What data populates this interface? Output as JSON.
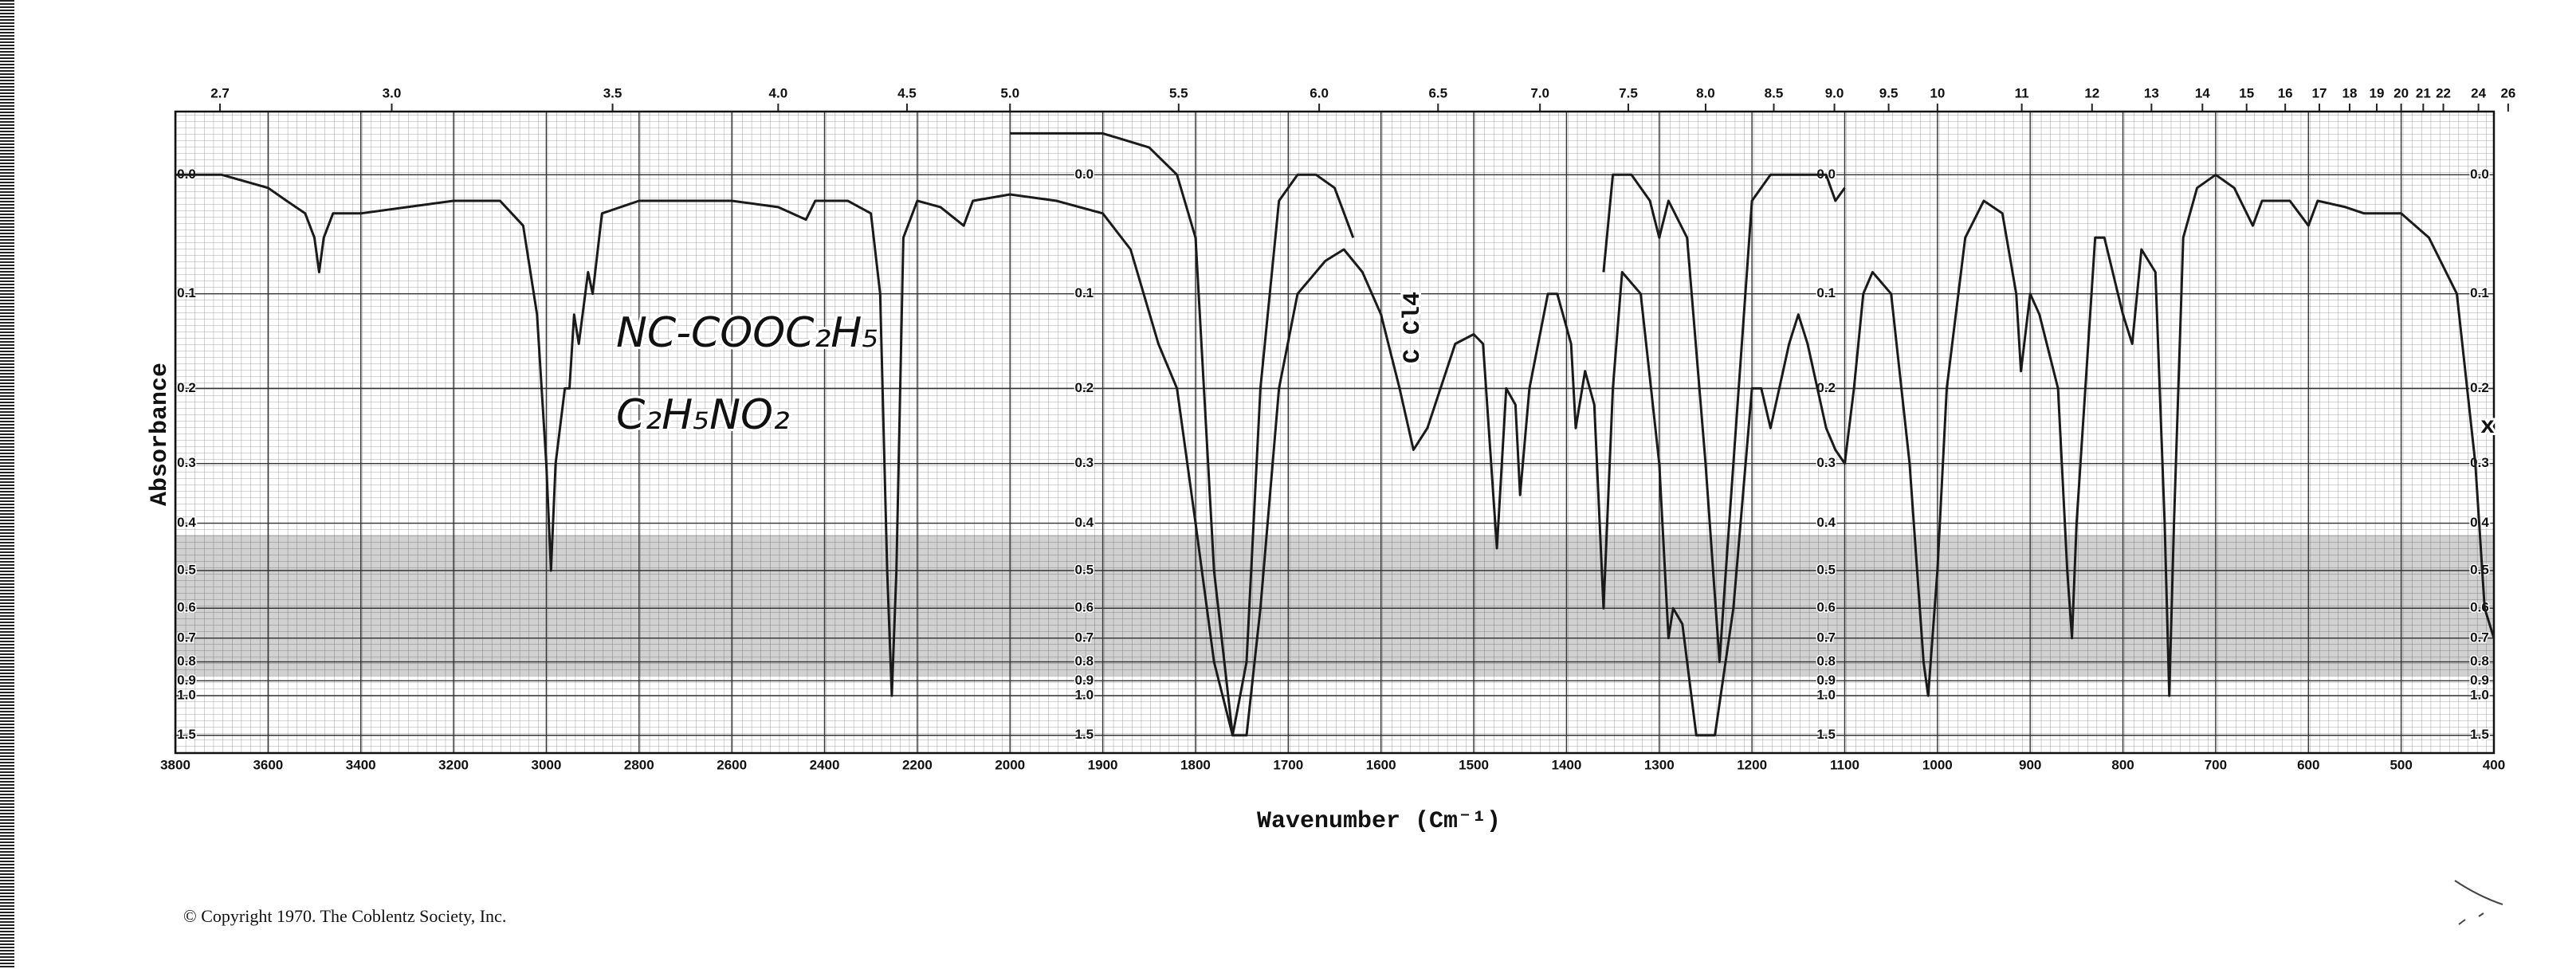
{
  "chart_data": {
    "type": "line",
    "xlabel": "Wavenumber (Cm⁻¹)",
    "ylabel": "Absorbance",
    "xlim": [
      3800,
      400
    ],
    "xticks": [
      3800,
      3600,
      3400,
      3200,
      3000,
      2800,
      2600,
      2400,
      2200,
      2000,
      1900,
      1800,
      1700,
      1600,
      1500,
      1400,
      1300,
      1200,
      1100,
      1000,
      900,
      800,
      700,
      600,
      500,
      400
    ],
    "x2ticks": [
      2.7,
      {
        "value": 3,
        "label": "3.0"
      },
      3.5,
      {
        "value": 4,
        "label": "4.0"
      },
      4.5,
      {
        "value": 5,
        "label": "5.0"
      },
      5.5,
      {
        "value": 6,
        "label": "6.0"
      },
      6.5,
      {
        "value": 7,
        "label": "7.0"
      },
      7.5,
      {
        "value": 8,
        "label": "8.0"
      },
      8.5,
      {
        "value": 9,
        "label": "9.0"
      },
      9.5,
      10,
      11,
      12,
      13,
      14,
      15,
      16,
      17,
      18,
      19,
      20,
      21,
      22,
      24,
      26
    ],
    "yscale": "transmittance",
    "ylim": [
      3,
      -0.045
    ],
    "yticks": [
      {
        "value": 0,
        "label": "0.0"
      },
      0.1,
      0.2,
      0.3,
      0.4,
      0.5,
      0.6,
      0.7,
      0.8,
      0.9,
      {
        "value": 1,
        "label": "1.0"
      },
      1.5
    ],
    "grid": true,
    "annotations": [
      "NC-COOC₂H₅",
      "C₂H₅NO₂",
      "C Cl4",
      "x"
    ],
    "copyright": "© Copyright 1970.  The Coblentz Society, Inc.",
    "series": [
      {
        "color": "#1a1a1a",
        "x": [
          3800,
          3700,
          3600,
          3560,
          3520,
          3500,
          3490,
          3480,
          3460,
          3400,
          3300,
          3200,
          3100,
          3050,
          3020,
          3000,
          2990,
          2980,
          2960,
          2950,
          2940,
          2930,
          2910,
          2900,
          2880,
          2800,
          2700,
          2600,
          2500,
          2440,
          2420,
          2350,
          2300,
          2280,
          2265,
          2255,
          2245,
          2230,
          2200,
          2150,
          2100,
          2080,
          2000,
          1950,
          1900,
          1870,
          1840,
          1820,
          1800,
          1780,
          1760,
          1745,
          1730,
          1710,
          1690,
          1660,
          1640,
          1620,
          1600,
          1580,
          1565,
          1550,
          1520,
          1500,
          1490,
          1475,
          1465,
          1455,
          1450,
          1440,
          1420,
          1410,
          1395,
          1390,
          1380,
          1370,
          1360,
          1350,
          1340,
          1320,
          1300,
          1290,
          1285,
          1275,
          1260,
          1240,
          1220,
          1200,
          1190,
          1180,
          1160,
          1150,
          1140,
          1120,
          1110,
          1100,
          1090,
          1080,
          1070,
          1050,
          1030,
          1015,
          1010,
          1000,
          990,
          970,
          950,
          930,
          915,
          910,
          900,
          890,
          870,
          860,
          855,
          850,
          830,
          820,
          800,
          790,
          780,
          765,
          755,
          750,
          745,
          735,
          720,
          700,
          680,
          660,
          650,
          620,
          600,
          590,
          560,
          540,
          500,
          470,
          440,
          420,
          410,
          400
        ],
        "values": [
          0,
          0,
          0.01,
          0.02,
          0.03,
          0.05,
          0.08,
          0.05,
          0.03,
          0.03,
          0.025,
          0.02,
          0.02,
          0.04,
          0.12,
          0.3,
          0.5,
          0.3,
          0.2,
          0.2,
          0.12,
          0.15,
          0.08,
          0.1,
          0.03,
          0.02,
          0.02,
          0.02,
          0.025,
          0.035,
          0.02,
          0.02,
          0.03,
          0.1,
          0.5,
          1.0,
          0.5,
          0.05,
          0.02,
          0.025,
          0.04,
          0.02,
          0.015,
          0.02,
          0.03,
          0.06,
          0.15,
          0.2,
          0.4,
          0.8,
          1.5,
          1.5,
          0.6,
          0.2,
          0.1,
          0.07,
          0.06,
          0.08,
          0.12,
          0.2,
          0.28,
          0.25,
          0.15,
          0.14,
          0.15,
          0.45,
          0.2,
          0.22,
          0.35,
          0.2,
          0.1,
          0.1,
          0.15,
          0.25,
          0.18,
          0.22,
          0.6,
          0.2,
          0.08,
          0.1,
          0.3,
          0.7,
          0.6,
          0.65,
          1.5,
          1.5,
          0.6,
          0.2,
          0.2,
          0.25,
          0.15,
          0.12,
          0.15,
          0.25,
          0.28,
          0.3,
          0.2,
          0.1,
          0.08,
          0.1,
          0.3,
          0.8,
          1.0,
          0.5,
          0.2,
          0.05,
          0.02,
          0.03,
          0.1,
          0.18,
          0.1,
          0.12,
          0.2,
          0.5,
          0.7,
          0.4,
          0.05,
          0.05,
          0.12,
          0.15,
          0.06,
          0.08,
          0.4,
          1.0,
          0.4,
          0.05,
          0.01,
          0,
          0.01,
          0.04,
          0.02,
          0.02,
          0.04,
          0.02,
          0.025,
          0.03,
          0.03,
          0.05,
          0.1,
          0.3,
          0.6,
          0.7
        ]
      },
      {
        "color": "#1a1a1a",
        "x": [
          2000,
          1950,
          1900,
          1850,
          1820,
          1800,
          1780,
          1760,
          1745,
          1730,
          1710,
          1690,
          1670,
          1650,
          1630,
          1500,
          1360,
          1350,
          1330,
          1310,
          1300,
          1290,
          1270,
          1250,
          1235,
          1220,
          1200,
          1180,
          1150,
          1120,
          1110,
          1100
        ],
        "values": [
          -0.03,
          -0.03,
          -0.03,
          -0.02,
          0,
          0.05,
          0.5,
          1.5,
          0.8,
          0.2,
          0.02,
          0,
          0,
          0.01,
          0.05,
          null,
          0.08,
          0,
          0,
          0.02,
          0.05,
          0.02,
          0.05,
          0.3,
          0.8,
          0.3,
          0.02,
          0,
          0,
          0,
          0.02,
          0.01
        ]
      }
    ]
  }
}
